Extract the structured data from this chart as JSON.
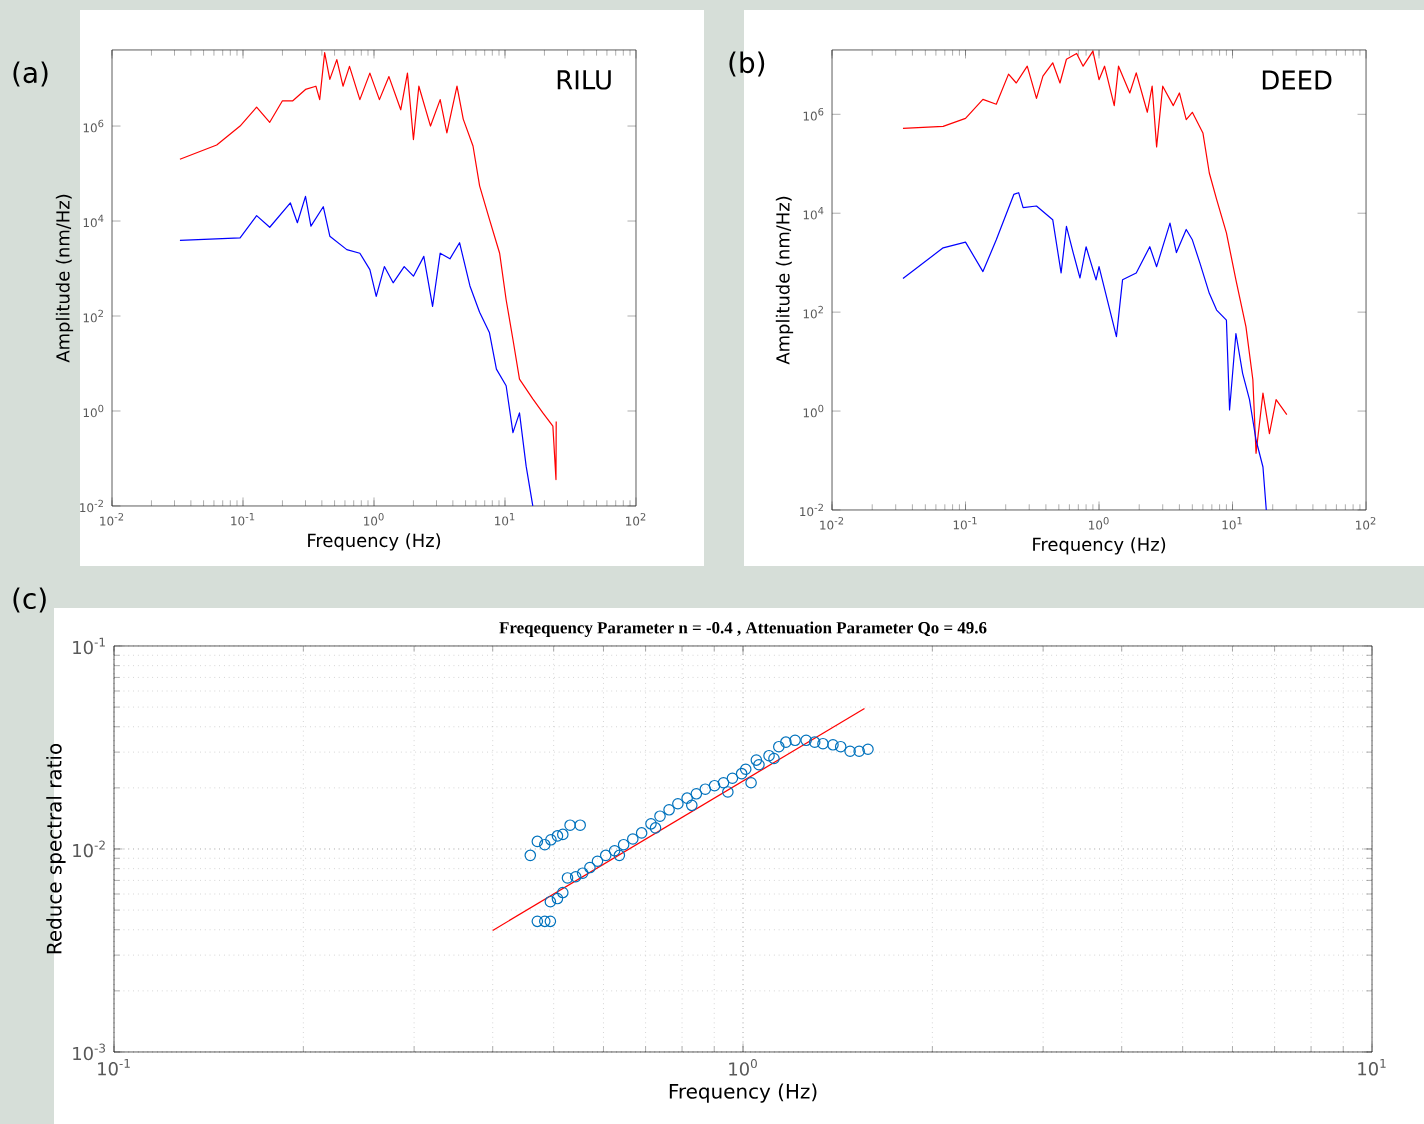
{
  "chart_data": [
    {
      "type": "line",
      "xlabel": "Frequency (Hz)",
      "ylabel": "Amplitude (nm/Hz)",
      "annotations": [
        "(a)",
        "RILU"
      ],
      "log": "xy",
      "xlim": [
        0.01,
        100
      ],
      "ylim": [
        0.01,
        40000000
      ],
      "xticks": [
        {
          "value": 0.01,
          "label": "10$^{-2}$"
        },
        {
          "value": 0.1,
          "label": "10$^{-1}$"
        },
        {
          "value": 1,
          "label": "10$^{0}$"
        },
        {
          "value": 10,
          "label": "10$^{1}$"
        },
        {
          "value": 100,
          "label": "10$^{2}$"
        }
      ],
      "yticks": [
        {
          "value": 0.01,
          "label": "10$^{-2}$"
        },
        {
          "value": 1,
          "label": "10$^{0}$"
        },
        {
          "value": 100,
          "label": "10$^{2}$"
        },
        {
          "value": 10000,
          "label": "10$^{4}$"
        },
        {
          "value": 1000000,
          "label": "10$^{6}$"
        }
      ],
      "series": [
        {
          "color": "#ff0000",
          "x": [
            0.033,
            0.063,
            0.095,
            0.127,
            0.16,
            0.2,
            0.24,
            0.3,
            0.36,
            0.385,
            0.42,
            0.46,
            0.52,
            0.58,
            0.65,
            0.78,
            0.93,
            1.1,
            1.3,
            1.6,
            1.8,
            2.0,
            2.2,
            2.7,
            3.2,
            3.6,
            4.3,
            4.8,
            5.7,
            6.4,
            7.6,
            9.1,
            10.2,
            11.5,
            12.9,
            16.3,
            19.4,
            23.2,
            24.5,
            24.6
          ],
          "values": [
            200000,
            400000,
            1000000,
            2500000,
            1200000,
            3400000,
            3400000,
            5900000,
            6900000,
            3600000,
            35000000,
            9600000,
            25000000,
            6900000,
            18000000,
            3600000,
            13000000,
            3600000,
            11000000,
            2200000,
            13000000,
            520000,
            6900000,
            1000000,
            3600000,
            720000,
            6900000,
            1400000,
            380000,
            55000,
            11000,
            2100,
            220,
            32,
            4.7,
            1.8,
            0.92,
            0.48,
            0.036,
            0.6
          ]
        },
        {
          "color": "#0000ff",
          "x": [
            0.033,
            0.095,
            0.127,
            0.16,
            0.23,
            0.26,
            0.3,
            0.33,
            0.41,
            0.46,
            0.62,
            0.78,
            0.93,
            1.04,
            1.2,
            1.4,
            1.7,
            2.0,
            2.4,
            2.8,
            3.2,
            3.8,
            4.5,
            5.4,
            6.4,
            7.6,
            8.6,
            10.2,
            11.5,
            12.9,
            14.5,
            16.3
          ],
          "values": [
            3900,
            4400,
            13000,
            7400,
            24000,
            9200,
            33000,
            7800,
            20000,
            4800,
            2500,
            2100,
            950,
            260,
            1100,
            500,
            1100,
            690,
            1800,
            160,
            2100,
            1600,
            3500,
            430,
            120,
            45,
            7.6,
            3.4,
            0.35,
            0.91,
            0.069,
            0.01
          ]
        }
      ]
    },
    {
      "type": "line",
      "xlabel": "Frequency (Hz)",
      "ylabel": "Amplitude (nm/Hz)",
      "annotations": [
        "(b)",
        "DEED"
      ],
      "log": "xy",
      "xlim": [
        0.01,
        100
      ],
      "ylim": [
        0.01,
        20000000
      ],
      "xticks": [
        {
          "value": 0.01,
          "label": "10$^{-2}$"
        },
        {
          "value": 0.1,
          "label": "10$^{-1}$"
        },
        {
          "value": 1,
          "label": "10$^{0}$"
        },
        {
          "value": 10,
          "label": "10$^{1}$"
        },
        {
          "value": 100,
          "label": "10$^{2}$"
        }
      ],
      "yticks": [
        {
          "value": 0.01,
          "label": "10$^{-2}$"
        },
        {
          "value": 1,
          "label": "10$^{0}$"
        },
        {
          "value": 100,
          "label": "10$^{2}$"
        },
        {
          "value": 10000,
          "label": "10$^{4}$"
        },
        {
          "value": 1000000,
          "label": "10$^{6}$"
        }
      ],
      "series": [
        {
          "color": "#ff0000",
          "x": [
            0.034,
            0.068,
            0.1,
            0.135,
            0.17,
            0.21,
            0.24,
            0.29,
            0.34,
            0.38,
            0.45,
            0.51,
            0.57,
            0.68,
            0.76,
            0.9,
            1.0,
            1.1,
            1.3,
            1.4,
            1.7,
            1.9,
            2.3,
            2.5,
            2.7,
            3.0,
            3.6,
            4.0,
            4.5,
            5.0,
            6.0,
            6.7,
            7.6,
            9.0,
            10.6,
            12.6,
            14.2,
            15.0,
            16.9,
            18.9,
            21.2,
            25.5
          ],
          "values": [
            520000,
            570000,
            830000,
            2000000,
            1600000,
            6500000,
            4300000,
            9400000,
            2100000,
            5900000,
            11000000,
            4300000,
            13000000,
            17000000,
            9400000,
            19000000,
            5000000,
            9400000,
            1500000,
            9400000,
            2700000,
            6900000,
            1100000,
            3700000,
            220000,
            3700000,
            1500000,
            2700000,
            780000,
            1100000,
            420000,
            65000,
            19000,
            4000,
            450,
            51,
            4.3,
            0.14,
            2.3,
            0.35,
            1.7,
            0.85
          ]
        },
        {
          "color": "#0000ff",
          "x": [
            0.034,
            0.068,
            0.1,
            0.135,
            0.17,
            0.23,
            0.25,
            0.27,
            0.34,
            0.45,
            0.52,
            0.57,
            0.64,
            0.72,
            0.8,
            0.95,
            1.0,
            1.35,
            1.5,
            1.9,
            2.4,
            2.7,
            3.4,
            3.8,
            4.5,
            5.0,
            5.7,
            6.7,
            7.6,
            9.0,
            9.5,
            10.6,
            11.9,
            13.4,
            15.0,
            16.9,
            17.9
          ],
          "values": [
            480,
            2000,
            2600,
            660,
            2900,
            24000,
            26000,
            13000,
            14000,
            7400,
            620,
            5400,
            1600,
            490,
            2100,
            450,
            830,
            32,
            450,
            620,
            2100,
            830,
            6300,
            1600,
            4700,
            2900,
            980,
            240,
            110,
            69,
            1.05,
            37,
            5.8,
            1.7,
            0.26,
            0.074,
            0.01
          ]
        }
      ]
    },
    {
      "type": "scatter",
      "title": "Freqequency Parameter n = -0.4 , Attenuation Parameter Qo = 49.6",
      "xlabel": "Frequency (Hz)",
      "ylabel": "Reduce spectral ratio",
      "annotations": [
        "(c)"
      ],
      "log": "xy",
      "grid": true,
      "xlim": [
        0.1,
        10
      ],
      "ylim": [
        0.001,
        0.1
      ],
      "xticks": [
        {
          "value": 0.1,
          "label": "10$^{-1}$"
        },
        {
          "value": 1,
          "label": "10$^{0}$"
        },
        {
          "value": 10,
          "label": "10$^{1}$"
        }
      ],
      "yticks": [
        {
          "value": 0.001,
          "label": "10$^{-3}$"
        },
        {
          "value": 0.01,
          "label": "10$^{-2}$"
        },
        {
          "value": 0.1,
          "label": "10$^{-1}$"
        }
      ],
      "series": [
        {
          "color": "#0072bd",
          "marker": "circle",
          "x": [
            0.459,
            0.471,
            0.484,
            0.495,
            0.507,
            0.517,
            0.531,
            0.551,
            0.471,
            0.484,
            0.494,
            0.494,
            0.507,
            0.517,
            0.526,
            0.542,
            0.556,
            0.571,
            0.587,
            0.605,
            0.625,
            0.646,
            0.668,
            0.69,
            0.714,
            0.738,
            0.763,
            0.788,
            0.815,
            0.843,
            0.871,
            0.901,
            0.931,
            0.962,
            0.995,
            1.03,
            1.06,
            1.1,
            1.14,
            1.17,
            1.21,
            1.26,
            1.3,
            1.34,
            1.39,
            1.43,
            1.48,
            1.53,
            1.58,
            0.946,
            1.01,
            1.05,
            1.12,
            0.829,
            0.726,
            0.636
          ],
          "values": [
            0.0093,
            0.0109,
            0.0105,
            0.0111,
            0.0116,
            0.0118,
            0.0131,
            0.0131,
            0.0044,
            0.0044,
            0.0044,
            0.0055,
            0.0057,
            0.0061,
            0.0072,
            0.0073,
            0.0076,
            0.0081,
            0.0087,
            0.0093,
            0.0098,
            0.0105,
            0.0112,
            0.012,
            0.0133,
            0.0145,
            0.0156,
            0.0167,
            0.0178,
            0.0187,
            0.0197,
            0.0205,
            0.0212,
            0.0223,
            0.0235,
            0.0212,
            0.026,
            0.0288,
            0.0319,
            0.0336,
            0.0343,
            0.0343,
            0.0336,
            0.033,
            0.0326,
            0.0319,
            0.0303,
            0.0303,
            0.031,
            0.0191,
            0.0247,
            0.0274,
            0.0279,
            0.0164,
            0.0127,
            0.0093
          ]
        },
        {
          "type": "line",
          "marker": "none",
          "color": "#ff0000",
          "x": [
            0.4,
            1.56
          ],
          "values": [
            0.00397,
            0.0492
          ]
        }
      ]
    }
  ]
}
